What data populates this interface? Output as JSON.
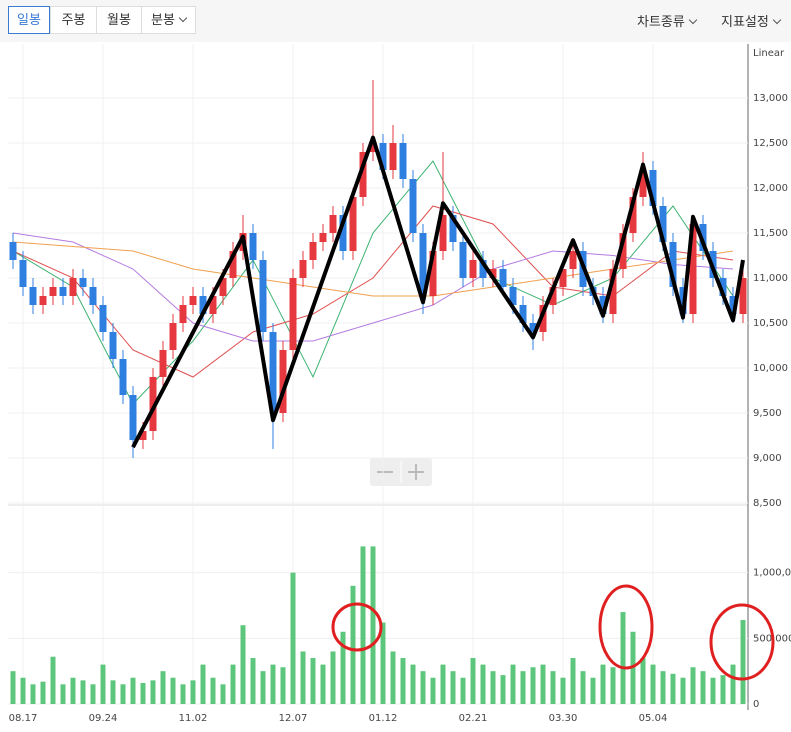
{
  "toolbar": {
    "periods": [
      "일봉",
      "주봉",
      "월봉",
      "분봉"
    ],
    "menus": [
      "차트종류",
      "지표설정"
    ]
  },
  "chart_data": {
    "type": "candlestick",
    "scale_label": "Linear",
    "up_color": "#e5393f",
    "down_color": "#2f7fe0",
    "categories": [
      null,
      "08.17",
      null,
      null,
      null,
      null,
      null,
      null,
      null,
      "09.24",
      null,
      null,
      null,
      null,
      null,
      null,
      null,
      null,
      "11.02",
      null,
      null,
      null,
      null,
      null,
      null,
      null,
      null,
      null,
      "12.07",
      null,
      null,
      null,
      null,
      null,
      null,
      null,
      null,
      "01.12",
      null,
      null,
      null,
      null,
      null,
      null,
      null,
      null,
      "02.21",
      null,
      null,
      null,
      null,
      null,
      null,
      null,
      null,
      "03.30",
      null,
      null,
      null,
      null,
      null,
      null,
      null,
      null,
      "05.04",
      null,
      null,
      null,
      null,
      null,
      null,
      null,
      null,
      null
    ],
    "open": [
      11400,
      11200,
      10900,
      10700,
      10800,
      10900,
      10800,
      11000,
      10900,
      10700,
      10400,
      10100,
      9700,
      9200,
      9300,
      9900,
      10200,
      10500,
      10700,
      10800,
      10600,
      10800,
      11000,
      11300,
      11500,
      11200,
      10400,
      9500,
      10200,
      11000,
      11200,
      11400,
      11500,
      11700,
      11300,
      11900,
      12400,
      12500,
      12200,
      12500,
      12100,
      11500,
      10800,
      11300,
      11700,
      11400,
      11000,
      11200,
      11000,
      11100,
      10900,
      10700,
      10500,
      10400,
      10700,
      10900,
      11100,
      11300,
      10900,
      10800,
      10600,
      11100,
      11500,
      11900,
      12200,
      11800,
      11400,
      10900,
      10600,
      11600,
      11300,
      11000,
      10800,
      10600
    ],
    "high": [
      11500,
      11300,
      11000,
      10900,
      11000,
      11000,
      11100,
      11100,
      11000,
      10800,
      10500,
      10200,
      9800,
      9400,
      10000,
      10300,
      10600,
      10800,
      10900,
      10900,
      10900,
      11100,
      11400,
      11700,
      11600,
      11300,
      10500,
      10300,
      11100,
      11300,
      11500,
      11600,
      11800,
      11800,
      12000,
      12500,
      13200,
      12600,
      12700,
      12600,
      12200,
      11600,
      11400,
      12400,
      11800,
      11500,
      11300,
      11300,
      11200,
      11200,
      11000,
      10800,
      10600,
      10800,
      11000,
      11200,
      11400,
      11400,
      11000,
      10900,
      11200,
      11600,
      12000,
      12400,
      12300,
      11900,
      11500,
      11000,
      11700,
      11700,
      11400,
      11100,
      10900,
      11100
    ],
    "low": [
      11100,
      10800,
      10600,
      10600,
      10700,
      10700,
      10700,
      10800,
      10600,
      10300,
      10000,
      9600,
      9000,
      9100,
      9200,
      9800,
      10100,
      10400,
      10600,
      10500,
      10500,
      10700,
      10900,
      11200,
      11100,
      10300,
      9100,
      9400,
      10100,
      10900,
      11100,
      11300,
      11400,
      11200,
      11200,
      11800,
      12300,
      12100,
      12100,
      12000,
      11400,
      10600,
      10700,
      11200,
      11300,
      10900,
      10900,
      10900,
      10900,
      10800,
      10600,
      10400,
      10200,
      10300,
      10600,
      10800,
      11000,
      10800,
      10700,
      10500,
      10500,
      11000,
      11400,
      11800,
      11700,
      11300,
      10800,
      10500,
      10500,
      11200,
      10900,
      10700,
      10500,
      10500
    ],
    "close": [
      11200,
      10900,
      10700,
      10800,
      10900,
      10800,
      11000,
      10900,
      10700,
      10400,
      10100,
      9700,
      9200,
      9300,
      9900,
      10200,
      10500,
      10700,
      10800,
      10600,
      10800,
      11000,
      11300,
      11500,
      11200,
      10400,
      9500,
      10200,
      11000,
      11200,
      11400,
      11500,
      11700,
      11300,
      11900,
      12400,
      12500,
      12200,
      12500,
      12100,
      11500,
      10800,
      11300,
      11700,
      11400,
      11000,
      11200,
      11000,
      11100,
      10900,
      10700,
      10500,
      10400,
      10700,
      10900,
      11100,
      11300,
      10900,
      10800,
      10600,
      11100,
      11500,
      11900,
      12200,
      11800,
      11400,
      10900,
      10600,
      11600,
      11300,
      11000,
      10800,
      10600,
      11000
    ],
    "ylim": [
      8500,
      13600
    ],
    "yticks": [
      {
        "value": 8500,
        "label": "8,500"
      },
      {
        "value": 9000,
        "label": "9,000"
      },
      {
        "value": 9500,
        "label": "9,500"
      },
      {
        "value": 10000,
        "label": "10,000"
      },
      {
        "value": 10500,
        "label": "10,500"
      },
      {
        "value": 11000,
        "label": "11,000"
      },
      {
        "value": 11500,
        "label": "11,500"
      },
      {
        "value": 12000,
        "label": "12,000"
      },
      {
        "value": 12500,
        "label": "12,500"
      },
      {
        "value": 13000,
        "label": "13,000"
      }
    ],
    "moving_averages": [
      {
        "color": "#3cb371",
        "x": [
          0,
          6,
          12,
          18,
          24,
          30,
          36,
          42,
          48,
          54,
          60,
          66,
          72
        ],
        "values": [
          11300,
          10900,
          9600,
          10300,
          11200,
          9900,
          11500,
          12300,
          11000,
          10700,
          11000,
          11800,
          10800
        ]
      },
      {
        "color": "#e05050",
        "x": [
          0,
          6,
          12,
          18,
          24,
          30,
          36,
          42,
          48,
          54,
          60,
          66,
          72
        ],
        "values": [
          11300,
          11000,
          10200,
          9900,
          10400,
          10600,
          11000,
          11800,
          11600,
          10900,
          10800,
          11300,
          11200
        ]
      },
      {
        "color": "#b57be0",
        "x": [
          0,
          6,
          12,
          18,
          24,
          30,
          36,
          42,
          48,
          54,
          60,
          66,
          72
        ],
        "values": [
          11500,
          11400,
          11100,
          10500,
          10300,
          10300,
          10500,
          10700,
          11100,
          11300,
          11250,
          11150,
          11100
        ]
      },
      {
        "color": "#f0a050",
        "x": [
          0,
          6,
          12,
          18,
          24,
          30,
          36,
          42,
          48,
          54,
          60,
          66,
          72
        ],
        "values": [
          11400,
          11350,
          11300,
          11100,
          11000,
          10900,
          10800,
          10800,
          10900,
          11000,
          11100,
          11200,
          11300
        ]
      }
    ],
    "zigzag": {
      "color": "#000000",
      "x": [
        12,
        23,
        26,
        36,
        41,
        43,
        52,
        56,
        59,
        63,
        67,
        68,
        72,
        73
      ],
      "values": [
        9120,
        11460,
        9420,
        12560,
        10730,
        11830,
        10340,
        11420,
        10580,
        12260,
        10560,
        11680,
        10530,
        11200
      ]
    },
    "volume": {
      "color": "#5cc77c",
      "values": [
        250000,
        200000,
        150000,
        170000,
        360000,
        150000,
        200000,
        180000,
        150000,
        300000,
        180000,
        150000,
        200000,
        160000,
        180000,
        250000,
        200000,
        150000,
        180000,
        300000,
        200000,
        150000,
        300000,
        600000,
        350000,
        250000,
        300000,
        280000,
        1000000,
        400000,
        350000,
        300000,
        400000,
        550000,
        900000,
        1200000,
        1200000,
        620000,
        400000,
        350000,
        300000,
        250000,
        200000,
        300000,
        250000,
        200000,
        350000,
        300000,
        250000,
        220000,
        300000,
        250000,
        280000,
        300000,
        250000,
        200000,
        350000,
        250000,
        200000,
        300000,
        280000,
        700000,
        550000,
        350000,
        300000,
        250000,
        230000,
        200000,
        280000,
        250000,
        200000,
        220000,
        300000,
        640000
      ],
      "ylim": [
        0,
        1500000
      ],
      "yticks": [
        0,
        {
          "value": 500000,
          "label": "500,000"
        },
        {
          "value": 1000000,
          "label": "1,000,000"
        }
      ]
    }
  }
}
